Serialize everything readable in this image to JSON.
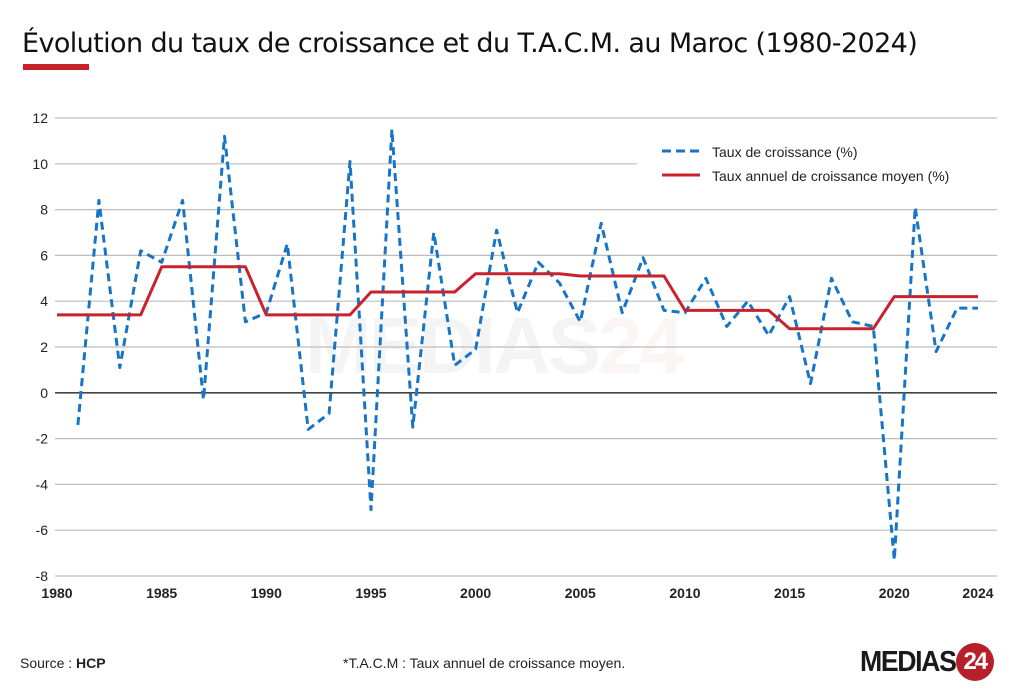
{
  "title": "Évolution du taux de croissance et du T.A.C.M. au Maroc (1980-2024)",
  "footer": {
    "source_label": "Source : ",
    "source_value": "HCP",
    "note": "*T.A.C.M : Taux annuel de croissance moyen."
  },
  "logo": {
    "text": "MEDIAS",
    "number": "24"
  },
  "watermark": {
    "text": "MEDIAS",
    "number": "24"
  },
  "colors": {
    "growth": "#1874c6",
    "tacm": "#c8232c",
    "accent": "#c8232c"
  },
  "chart_data": {
    "type": "line",
    "title": "Évolution du taux de croissance et du T.A.C.M. au Maroc (1980-2024)",
    "xlabel": "",
    "ylabel": "",
    "xlim": [
      1980,
      2024
    ],
    "ylim": [
      -8,
      12
    ],
    "x_ticks": [
      1980,
      1985,
      1990,
      1995,
      2000,
      2005,
      2010,
      2015,
      2020,
      2024
    ],
    "y_ticks": [
      -8,
      -6,
      -4,
      -2,
      0,
      2,
      4,
      6,
      8,
      10,
      12
    ],
    "grid": true,
    "legend_position": "top-right",
    "series": [
      {
        "name": "Taux de croissance (%)",
        "style": "dashed",
        "x": [
          1981,
          1982,
          1983,
          1984,
          1985,
          1986,
          1987,
          1988,
          1989,
          1990,
          1991,
          1992,
          1993,
          1994,
          1995,
          1996,
          1997,
          1998,
          1999,
          2000,
          2001,
          2002,
          2003,
          2004,
          2005,
          2006,
          2007,
          2008,
          2009,
          2010,
          2011,
          2012,
          2013,
          2014,
          2015,
          2016,
          2017,
          2018,
          2019,
          2020,
          2021,
          2022,
          2023,
          2024
        ],
        "values": [
          -1.4,
          8.4,
          1.1,
          6.2,
          5.7,
          8.4,
          -0.3,
          11.2,
          3.1,
          3.5,
          6.5,
          -1.6,
          -0.9,
          10.1,
          -5.1,
          11.5,
          -1.5,
          7.0,
          1.2,
          1.9,
          7.1,
          3.5,
          5.7,
          4.8,
          3.1,
          7.4,
          3.5,
          5.9,
          3.6,
          3.5,
          5.0,
          2.9,
          4.0,
          2.5,
          4.2,
          0.4,
          5.0,
          3.1,
          2.9,
          -7.3,
          8.1,
          1.8,
          3.7,
          3.7
        ]
      },
      {
        "name": "Taux annuel de croissance moyen (%)",
        "style": "solid",
        "x": [
          1980,
          1984,
          1985,
          1989,
          1990,
          1994,
          1995,
          1999,
          2000,
          2004,
          2005,
          2009,
          2010,
          2014,
          2015,
          2019,
          2020,
          2024
        ],
        "values": [
          3.4,
          3.4,
          5.5,
          5.5,
          3.4,
          3.4,
          4.4,
          4.4,
          5.2,
          5.2,
          5.1,
          5.1,
          3.6,
          3.6,
          2.8,
          2.8,
          4.2,
          4.2
        ]
      }
    ]
  }
}
